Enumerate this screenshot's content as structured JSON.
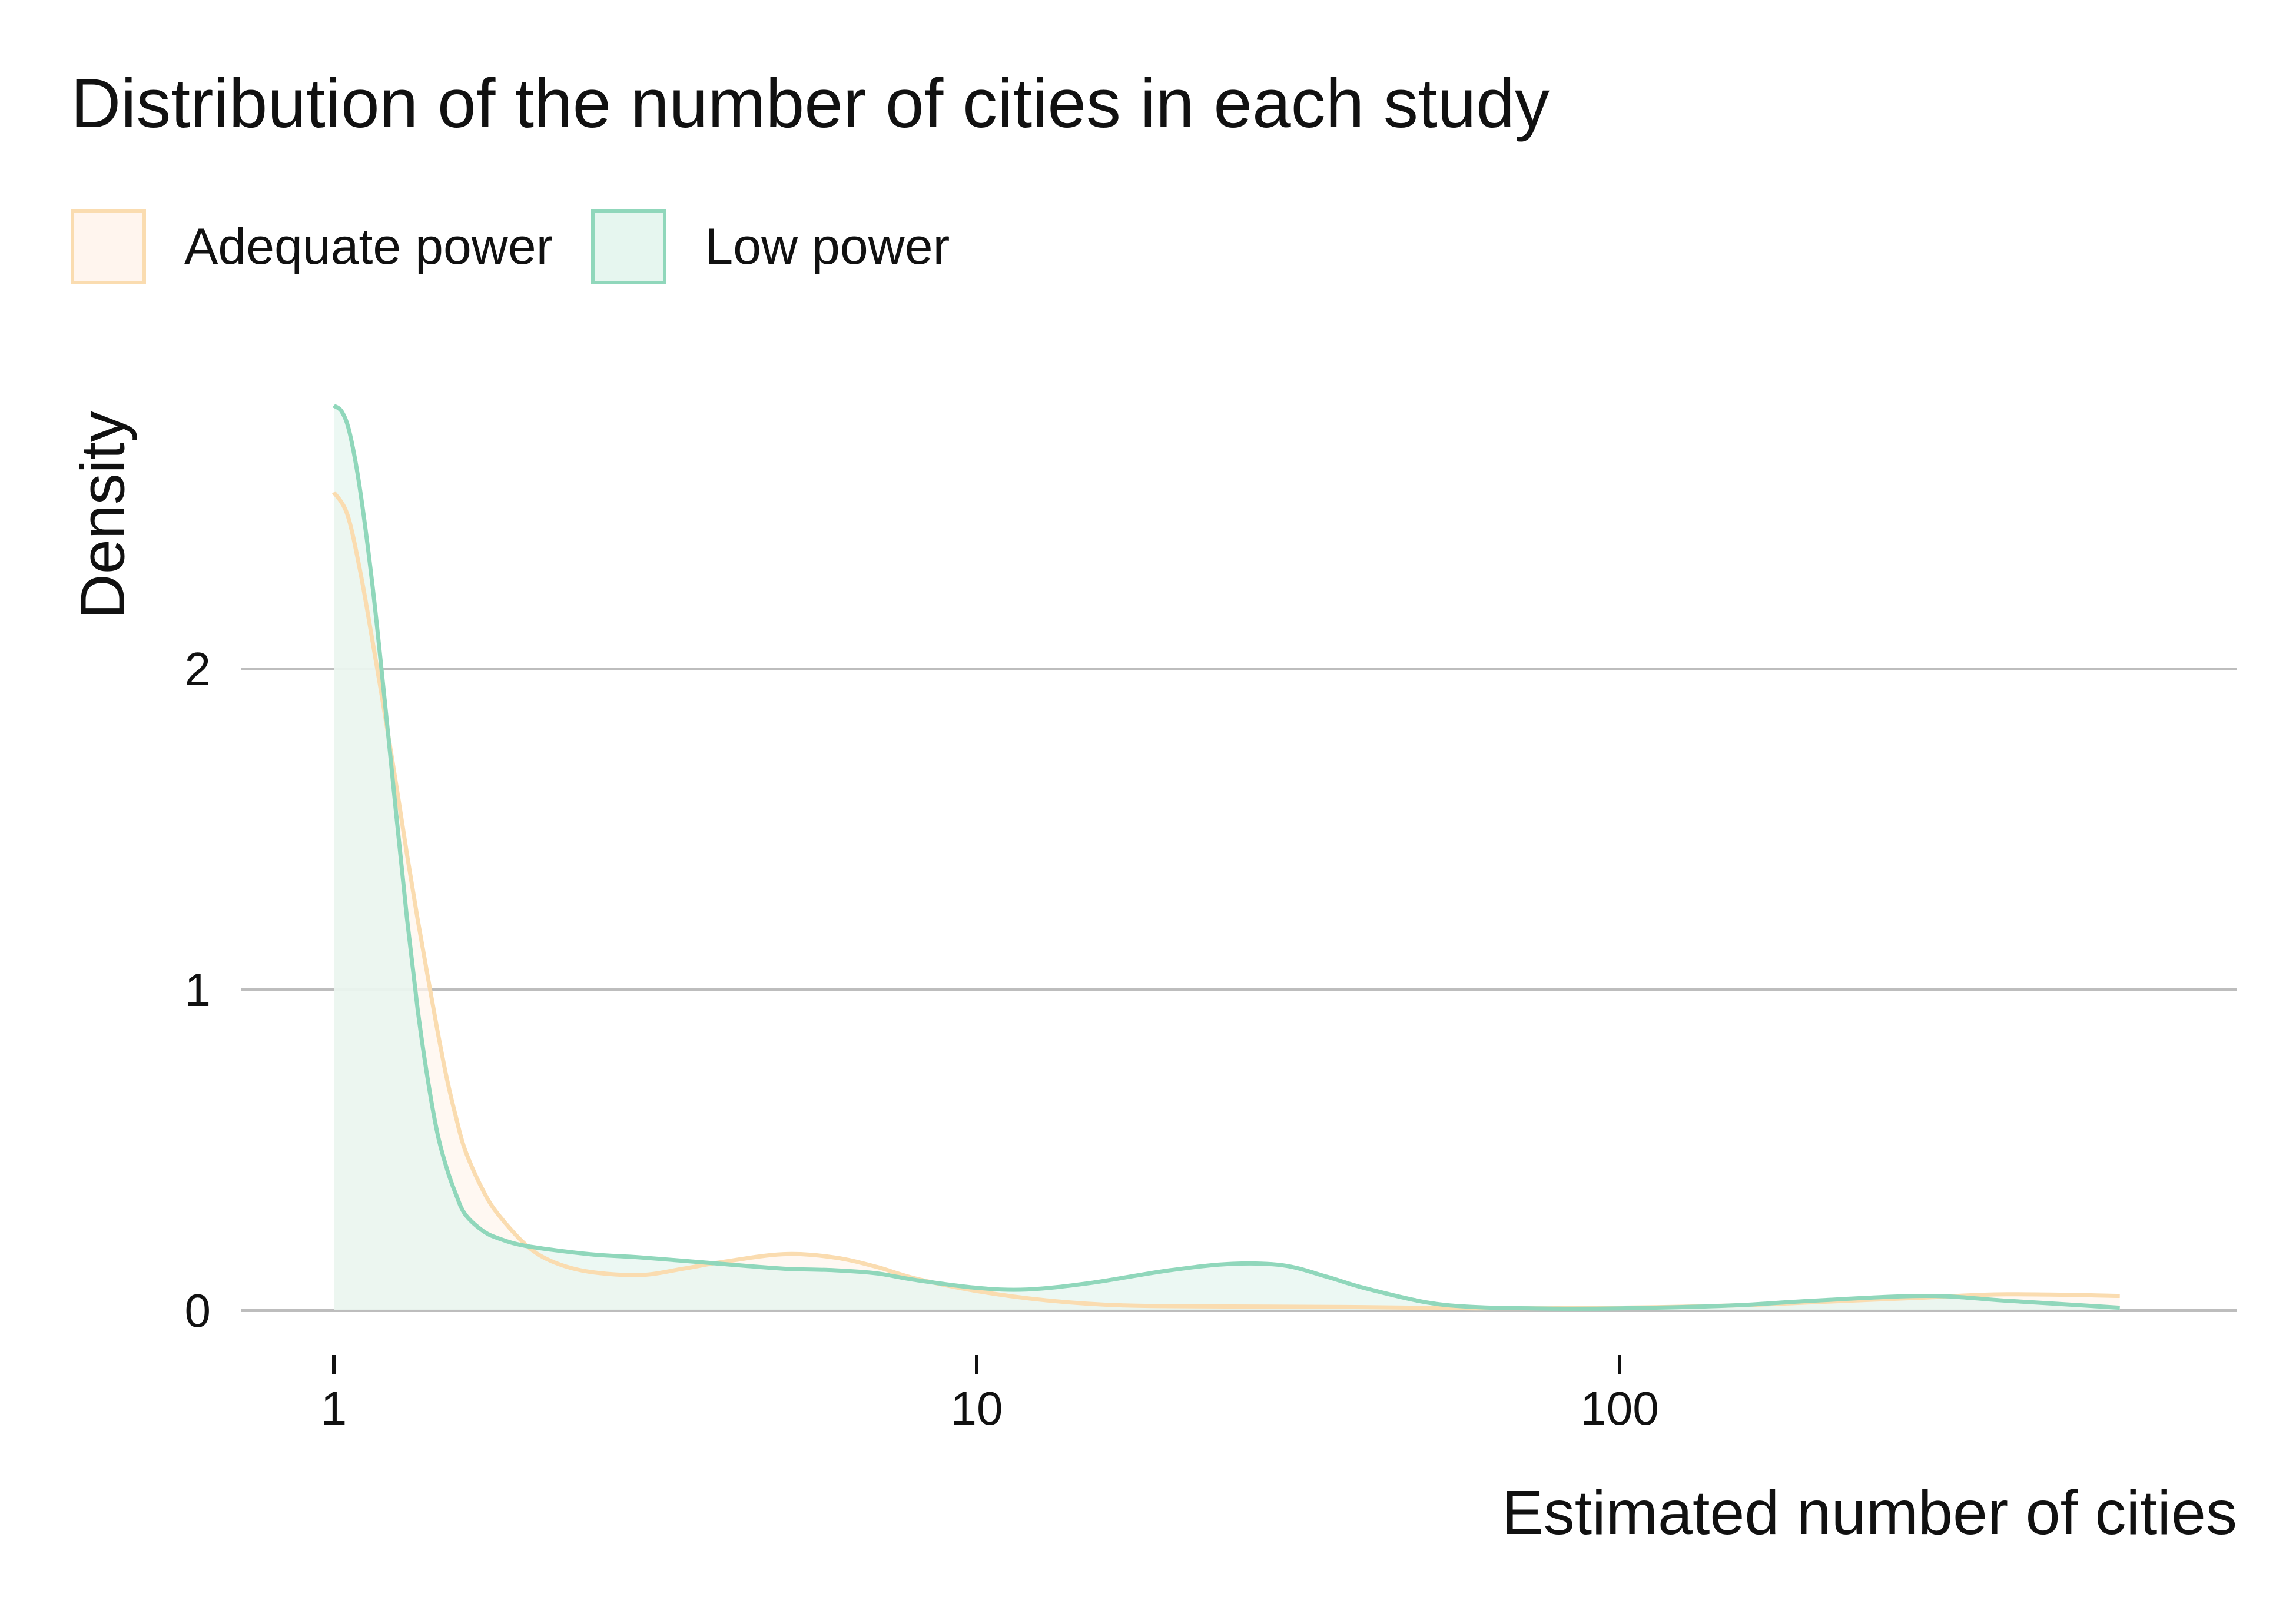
{
  "chart_data": {
    "type": "area",
    "title": "Distribution of the number of cities in each study",
    "xlabel": "Estimated number of cities",
    "ylabel": "Density",
    "x_scale": "log10",
    "xlim": [
      1,
      600
    ],
    "ylim": [
      0,
      2.8
    ],
    "x_ticks": [
      {
        "value": 1,
        "label": "1"
      },
      {
        "value": 10,
        "label": "10"
      },
      {
        "value": 100,
        "label": "100"
      }
    ],
    "y_ticks": [
      {
        "value": 0,
        "label": "0"
      },
      {
        "value": 1,
        "label": "1"
      },
      {
        "value": 2,
        "label": "2"
      }
    ],
    "grid": "horizontal",
    "legend_position": "top-left",
    "series": [
      {
        "name": "Adequate power",
        "stroke": "#fadcb0",
        "fill": "#fff5ee",
        "points": [
          [
            1,
            2.55
          ],
          [
            1.05,
            2.48
          ],
          [
            1.1,
            2.3
          ],
          [
            1.15,
            2.08
          ],
          [
            1.2,
            1.86
          ],
          [
            1.25,
            1.64
          ],
          [
            1.3,
            1.42
          ],
          [
            1.35,
            1.22
          ],
          [
            1.4,
            1.04
          ],
          [
            1.45,
            0.87
          ],
          [
            1.5,
            0.72
          ],
          [
            1.55,
            0.6
          ],
          [
            1.6,
            0.5
          ],
          [
            1.7,
            0.38
          ],
          [
            1.8,
            0.3
          ],
          [
            2,
            0.2
          ],
          [
            2.2,
            0.15
          ],
          [
            2.5,
            0.12
          ],
          [
            3,
            0.11
          ],
          [
            3.5,
            0.13
          ],
          [
            4,
            0.15
          ],
          [
            5,
            0.175
          ],
          [
            6,
            0.165
          ],
          [
            7,
            0.135
          ],
          [
            8,
            0.1
          ],
          [
            10,
            0.06
          ],
          [
            13,
            0.03
          ],
          [
            17,
            0.015
          ],
          [
            25,
            0.012
          ],
          [
            40,
            0.01
          ],
          [
            60,
            0.006
          ],
          [
            100,
            0.008
          ],
          [
            150,
            0.015
          ],
          [
            200,
            0.025
          ],
          [
            300,
            0.04
          ],
          [
            400,
            0.05
          ],
          [
            600,
            0.045
          ]
        ]
      },
      {
        "name": "Low power",
        "stroke": "#90d7bb",
        "fill": "#e6f6ef",
        "points": [
          [
            1,
            2.82
          ],
          [
            1.03,
            2.8
          ],
          [
            1.06,
            2.73
          ],
          [
            1.1,
            2.55
          ],
          [
            1.15,
            2.25
          ],
          [
            1.2,
            1.9
          ],
          [
            1.25,
            1.55
          ],
          [
            1.3,
            1.22
          ],
          [
            1.35,
            0.94
          ],
          [
            1.4,
            0.72
          ],
          [
            1.45,
            0.55
          ],
          [
            1.5,
            0.44
          ],
          [
            1.55,
            0.36
          ],
          [
            1.6,
            0.3
          ],
          [
            1.7,
            0.25
          ],
          [
            1.8,
            0.225
          ],
          [
            2,
            0.2
          ],
          [
            2.5,
            0.175
          ],
          [
            3,
            0.165
          ],
          [
            4,
            0.145
          ],
          [
            5,
            0.13
          ],
          [
            6,
            0.125
          ],
          [
            7,
            0.115
          ],
          [
            8,
            0.095
          ],
          [
            10,
            0.07
          ],
          [
            12,
            0.065
          ],
          [
            15,
            0.085
          ],
          [
            20,
            0.125
          ],
          [
            25,
            0.145
          ],
          [
            30,
            0.14
          ],
          [
            35,
            0.105
          ],
          [
            40,
            0.07
          ],
          [
            50,
            0.025
          ],
          [
            60,
            0.01
          ],
          [
            80,
            0.005
          ],
          [
            100,
            0.006
          ],
          [
            150,
            0.015
          ],
          [
            200,
            0.03
          ],
          [
            300,
            0.045
          ],
          [
            400,
            0.03
          ],
          [
            600,
            0.008
          ]
        ]
      }
    ]
  }
}
